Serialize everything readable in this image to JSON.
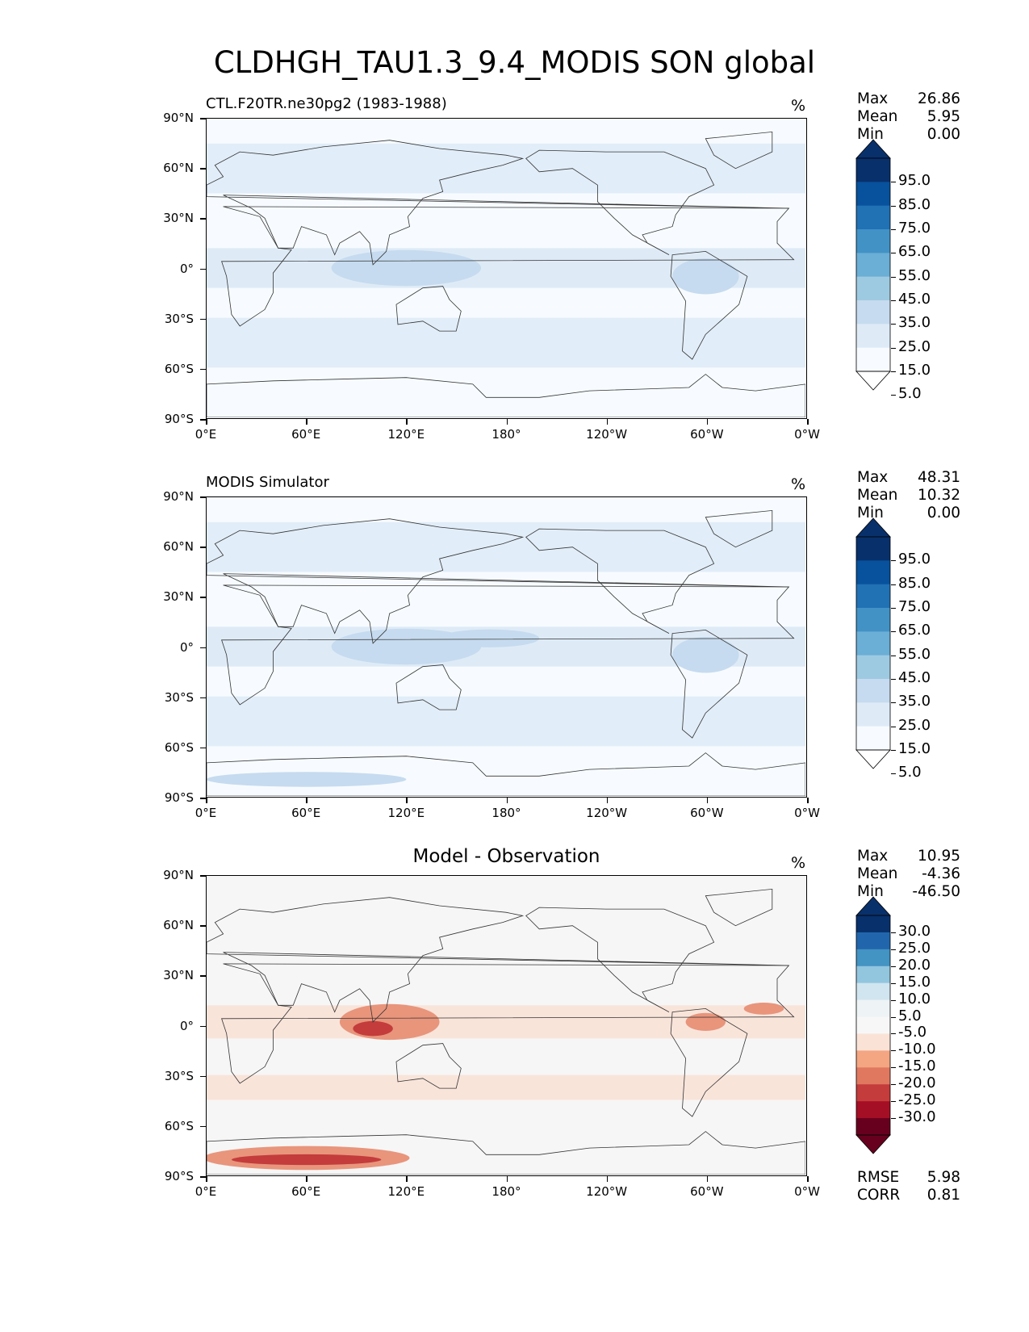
{
  "title": "CLDHGH_TAU1.3_9.4_MODIS SON global",
  "lat_labels": [
    "90°N",
    "60°N",
    "30°N",
    "0°",
    "30°S",
    "60°S",
    "90°S"
  ],
  "lon_labels": [
    "0°E",
    "60°E",
    "120°E",
    "180°",
    "120°W",
    "60°W",
    "0°W"
  ],
  "panels": [
    {
      "title": "CTL.F20TR.ne30pg2 (1983-1988)",
      "units": "%",
      "stats": {
        "max_label": "Max",
        "max": "26.86",
        "mean_label": "Mean",
        "mean": "5.95",
        "min_label": "Min",
        "min": "0.00"
      },
      "colorbar": {
        "levels": [
          "95.0",
          "85.0",
          "75.0",
          "65.0",
          "55.0",
          "45.0",
          "35.0",
          "25.0",
          "15.0",
          "5.0"
        ],
        "colors": [
          "#08306b",
          "#08519c",
          "#2171b5",
          "#4292c6",
          "#6baed6",
          "#9ecae1",
          "#c6dbef",
          "#deebf7",
          "#f7fbff"
        ]
      },
      "colors": {
        "background": "#f7fbff",
        "band": "#deebf7",
        "strong": "#c6dbef"
      }
    },
    {
      "title": "MODIS Simulator",
      "units": "%",
      "stats": {
        "max_label": "Max",
        "max": "48.31",
        "mean_label": "Mean",
        "mean": "10.32",
        "min_label": "Min",
        "min": "0.00"
      },
      "colorbar": {
        "levels": [
          "95.0",
          "85.0",
          "75.0",
          "65.0",
          "55.0",
          "45.0",
          "35.0",
          "25.0",
          "15.0",
          "5.0"
        ],
        "colors": [
          "#08306b",
          "#08519c",
          "#2171b5",
          "#4292c6",
          "#6baed6",
          "#9ecae1",
          "#c6dbef",
          "#deebf7",
          "#f7fbff"
        ]
      },
      "colors": {
        "background": "#f7fbff",
        "band": "#deebf7",
        "strong": "#c6dbef"
      }
    },
    {
      "title": "Model - Observation",
      "units": "%",
      "stats": {
        "max_label": "Max",
        "max": "10.95",
        "mean_label": "Mean",
        "mean": "-4.36",
        "min_label": "Min",
        "min": "-46.50"
      },
      "colorbar": {
        "levels": [
          "30.0",
          "25.0",
          "20.0",
          "15.0",
          "10.0",
          "5.0",
          "-5.0",
          "-10.0",
          "-15.0",
          "-20.0",
          "-25.0",
          "-30.0"
        ],
        "colors": [
          "#08306b",
          "#2166ac",
          "#4393c3",
          "#92c5de",
          "#d1e5f0",
          "#eef3f6",
          "#f7f7f7",
          "#fbe2d6",
          "#f4a582",
          "#e07860",
          "#c43c3c",
          "#a50f25",
          "#67001f"
        ]
      },
      "colors": {
        "background": "#f6f6f6",
        "band": "#fbd8c8",
        "strong": "#e8957c"
      },
      "rmse_label": "RMSE",
      "rmse": "5.98",
      "corr_label": "CORR",
      "corr": "0.81"
    }
  ]
}
